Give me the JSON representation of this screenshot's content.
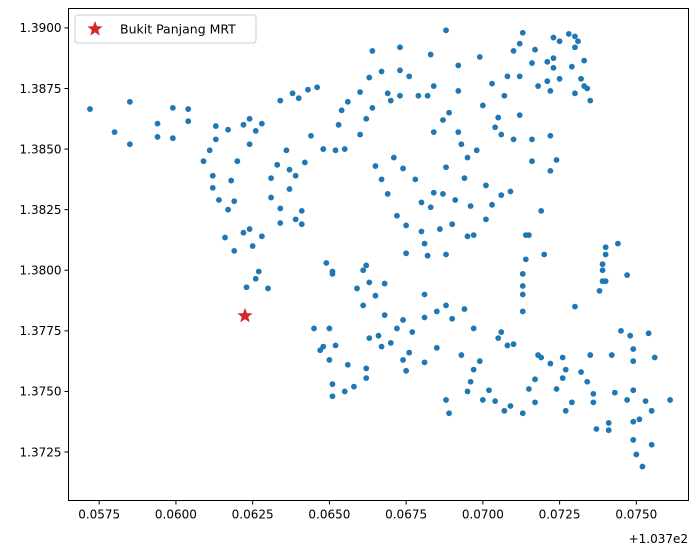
{
  "chart_data": {
    "type": "scatter",
    "title": "",
    "xlabel": "",
    "ylabel": "",
    "xlim": [
      0.0565,
      0.0767
    ],
    "ylim": [
      1.3705,
      1.3908
    ],
    "x_offset_label": "+1.037e2",
    "xticks": [
      0.0575,
      0.06,
      0.0625,
      0.065,
      0.0675,
      0.07,
      0.0725,
      0.075
    ],
    "xtick_labels": [
      "0.0575",
      "0.0600",
      "0.0625",
      "0.0650",
      "0.0675",
      "0.0700",
      "0.0725",
      "0.0750"
    ],
    "yticks": [
      1.3725,
      1.375,
      1.3775,
      1.38,
      1.3825,
      1.385,
      1.3875,
      1.39
    ],
    "ytick_labels": [
      "1.3725",
      "1.3750",
      "1.3775",
      "1.3800",
      "1.3825",
      "1.3850",
      "1.3875",
      "1.3900"
    ],
    "grid": false,
    "legend_position": "top-left",
    "legend": [
      {
        "name": "Bukit Panjang MRT",
        "marker": "star",
        "color": "#d62728"
      }
    ],
    "colors": {
      "points": "#1f77b4",
      "station": "#d62728"
    },
    "station": {
      "name": "Bukit Panjang MRT",
      "x": 0.06225,
      "y": 1.37812
    },
    "points": [
      [
        0.0572,
        1.38665
      ],
      [
        0.058,
        1.3857
      ],
      [
        0.0585,
        1.38695
      ],
      [
        0.0585,
        1.3852
      ],
      [
        0.0594,
        1.38605
      ],
      [
        0.0594,
        1.3855
      ],
      [
        0.0599,
        1.3867
      ],
      [
        0.0599,
        1.38545
      ],
      [
        0.0604,
        1.38665
      ],
      [
        0.0604,
        1.38615
      ],
      [
        0.0609,
        1.3845
      ],
      [
        0.0611,
        1.38495
      ],
      [
        0.0612,
        1.3839
      ],
      [
        0.0612,
        1.3834
      ],
      [
        0.0613,
        1.3854
      ],
      [
        0.0613,
        1.38595
      ],
      [
        0.0614,
        1.3829
      ],
      [
        0.0616,
        1.38135
      ],
      [
        0.0617,
        1.3825
      ],
      [
        0.0617,
        1.3858
      ],
      [
        0.0618,
        1.3837
      ],
      [
        0.0619,
        1.3808
      ],
      [
        0.0619,
        1.38285
      ],
      [
        0.062,
        1.3845
      ],
      [
        0.0622,
        1.38155
      ],
      [
        0.0622,
        1.386
      ],
      [
        0.0623,
        1.3793
      ],
      [
        0.0624,
        1.38625
      ],
      [
        0.0624,
        1.3817
      ],
      [
        0.0624,
        1.3852
      ],
      [
        0.0625,
        1.381
      ],
      [
        0.0626,
        1.38575
      ],
      [
        0.0626,
        1.37965
      ],
      [
        0.0627,
        1.37995
      ],
      [
        0.0628,
        1.3814
      ],
      [
        0.0628,
        1.38605
      ],
      [
        0.063,
        1.37925
      ],
      [
        0.0631,
        1.3838
      ],
      [
        0.0631,
        1.383
      ],
      [
        0.0633,
        1.38435
      ],
      [
        0.0634,
        1.38255
      ],
      [
        0.0634,
        1.38195
      ],
      [
        0.0634,
        1.387
      ],
      [
        0.0636,
        1.38495
      ],
      [
        0.0637,
        1.38415
      ],
      [
        0.0637,
        1.38335
      ],
      [
        0.0638,
        1.3873
      ],
      [
        0.0639,
        1.3839
      ],
      [
        0.0639,
        1.3821
      ],
      [
        0.064,
        1.3871
      ],
      [
        0.0641,
        1.38245
      ],
      [
        0.0641,
        1.3819
      ],
      [
        0.0642,
        1.38445
      ],
      [
        0.0643,
        1.38745
      ],
      [
        0.0644,
        1.38555
      ],
      [
        0.0646,
        1.38755
      ],
      [
        0.0648,
        1.385
      ],
      [
        0.0645,
        1.3776
      ],
      [
        0.0647,
        1.3767
      ],
      [
        0.0648,
        1.37685
      ],
      [
        0.0649,
        1.3803
      ],
      [
        0.065,
        1.3776
      ],
      [
        0.065,
        1.3763
      ],
      [
        0.0651,
        1.37995
      ],
      [
        0.0651,
        1.3753
      ],
      [
        0.0651,
        1.3748
      ],
      [
        0.0651,
        1.37985
      ],
      [
        0.0652,
        1.3769
      ],
      [
        0.0652,
        1.38495
      ],
      [
        0.0653,
        1.386
      ],
      [
        0.0654,
        1.3866
      ],
      [
        0.0655,
        1.375
      ],
      [
        0.0655,
        1.385
      ],
      [
        0.0656,
        1.38695
      ],
      [
        0.0656,
        1.3761
      ],
      [
        0.0658,
        1.3752
      ],
      [
        0.0659,
        1.37925
      ],
      [
        0.066,
        1.3856
      ],
      [
        0.066,
        1.38735
      ],
      [
        0.0661,
        1.37855
      ],
      [
        0.0661,
        1.38
      ],
      [
        0.0662,
        1.3802
      ],
      [
        0.0662,
        1.38625
      ],
      [
        0.0662,
        1.37555
      ],
      [
        0.0662,
        1.37595
      ],
      [
        0.0663,
        1.3772
      ],
      [
        0.0663,
        1.3795
      ],
      [
        0.0663,
        1.38795
      ],
      [
        0.0664,
        1.38905
      ],
      [
        0.0664,
        1.3867
      ],
      [
        0.0665,
        1.3843
      ],
      [
        0.0665,
        1.37895
      ],
      [
        0.0666,
        1.3773
      ],
      [
        0.0667,
        1.38375
      ],
      [
        0.0667,
        1.3882
      ],
      [
        0.0667,
        1.37685
      ],
      [
        0.0668,
        1.37815
      ],
      [
        0.0668,
        1.37945
      ],
      [
        0.0669,
        1.38315
      ],
      [
        0.0669,
        1.3873
      ],
      [
        0.067,
        1.387
      ],
      [
        0.067,
        1.377
      ],
      [
        0.0671,
        1.38465
      ],
      [
        0.0672,
        1.38225
      ],
      [
        0.0672,
        1.3776
      ],
      [
        0.0673,
        1.3892
      ],
      [
        0.0673,
        1.38825
      ],
      [
        0.0673,
        1.3872
      ],
      [
        0.0674,
        1.3842
      ],
      [
        0.0674,
        1.3763
      ],
      [
        0.0674,
        1.37795
      ],
      [
        0.0675,
        1.38185
      ],
      [
        0.0675,
        1.3807
      ],
      [
        0.0675,
        1.37585
      ],
      [
        0.0676,
        1.3766
      ],
      [
        0.0676,
        1.388
      ],
      [
        0.0677,
        1.37745
      ],
      [
        0.0678,
        1.38375
      ],
      [
        0.0679,
        1.3872
      ],
      [
        0.068,
        1.3828
      ],
      [
        0.068,
        1.3816
      ],
      [
        0.0681,
        1.3811
      ],
      [
        0.0681,
        1.379
      ],
      [
        0.0681,
        1.3762
      ],
      [
        0.0681,
        1.37805
      ],
      [
        0.0682,
        1.3806
      ],
      [
        0.0682,
        1.3872
      ],
      [
        0.0683,
        1.3826
      ],
      [
        0.0683,
        1.3889
      ],
      [
        0.0684,
        1.3832
      ],
      [
        0.0684,
        1.3876
      ],
      [
        0.0684,
        1.3857
      ],
      [
        0.0685,
        1.3768
      ],
      [
        0.0685,
        1.3783
      ],
      [
        0.0686,
        1.3817
      ],
      [
        0.0687,
        1.3862
      ],
      [
        0.0687,
        1.38315
      ],
      [
        0.0688,
        1.38065
      ],
      [
        0.0688,
        1.38425
      ],
      [
        0.0688,
        1.37855
      ],
      [
        0.0688,
        1.37465
      ],
      [
        0.0688,
        1.3899
      ],
      [
        0.0689,
        1.3741
      ],
      [
        0.0689,
        1.3865
      ],
      [
        0.069,
        1.3819
      ],
      [
        0.069,
        1.378
      ],
      [
        0.0691,
        1.3829
      ],
      [
        0.0692,
        1.38845
      ],
      [
        0.0692,
        1.3874
      ],
      [
        0.0692,
        1.3857
      ],
      [
        0.0693,
        1.3852
      ],
      [
        0.0693,
        1.3765
      ],
      [
        0.0694,
        1.3838
      ],
      [
        0.0694,
        1.3784
      ],
      [
        0.0695,
        1.38465
      ],
      [
        0.0695,
        1.3814
      ],
      [
        0.0695,
        1.375
      ],
      [
        0.0696,
        1.3754
      ],
      [
        0.0696,
        1.38265
      ],
      [
        0.0697,
        1.38145
      ],
      [
        0.0697,
        1.3759
      ],
      [
        0.0697,
        1.3776
      ],
      [
        0.0698,
        1.38495
      ],
      [
        0.0699,
        1.3888
      ],
      [
        0.0699,
        1.37625
      ],
      [
        0.07,
        1.3868
      ],
      [
        0.07,
        1.37465
      ],
      [
        0.0701,
        1.3835
      ],
      [
        0.0701,
        1.3821
      ],
      [
        0.0702,
        1.37505
      ],
      [
        0.0703,
        1.3827
      ],
      [
        0.0703,
        1.3877
      ],
      [
        0.0704,
        1.3859
      ],
      [
        0.0704,
        1.3746
      ],
      [
        0.0705,
        1.3772
      ],
      [
        0.0705,
        1.3863
      ],
      [
        0.0706,
        1.3856
      ],
      [
        0.0706,
        1.3831
      ],
      [
        0.0706,
        1.37745
      ],
      [
        0.0707,
        1.3742
      ],
      [
        0.0707,
        1.3872
      ],
      [
        0.0708,
        1.3769
      ],
      [
        0.0708,
        1.388
      ],
      [
        0.0709,
        1.38325
      ],
      [
        0.0709,
        1.3744
      ],
      [
        0.071,
        1.38905
      ],
      [
        0.071,
        1.3854
      ],
      [
        0.071,
        1.37695
      ],
      [
        0.0712,
        1.38935
      ],
      [
        0.0712,
        1.388
      ],
      [
        0.0712,
        1.3864
      ],
      [
        0.0713,
        1.3741
      ],
      [
        0.0713,
        1.37935
      ],
      [
        0.0713,
        1.379
      ],
      [
        0.0713,
        1.3783
      ],
      [
        0.0713,
        1.37985
      ],
      [
        0.0713,
        1.3898
      ],
      [
        0.0714,
        1.38045
      ],
      [
        0.0714,
        1.38145
      ],
      [
        0.0715,
        1.38145
      ],
      [
        0.0715,
        1.3751
      ],
      [
        0.0716,
        1.38855
      ],
      [
        0.0716,
        1.3845
      ],
      [
        0.0716,
        1.3854
      ],
      [
        0.0717,
        1.3891
      ],
      [
        0.0717,
        1.3755
      ],
      [
        0.0717,
        1.37455
      ],
      [
        0.0718,
        1.3876
      ],
      [
        0.0718,
        1.3765
      ],
      [
        0.0719,
        1.3764
      ],
      [
        0.0719,
        1.38245
      ],
      [
        0.072,
        1.38065
      ],
      [
        0.0721,
        1.3878
      ],
      [
        0.0721,
        1.3886
      ],
      [
        0.0722,
        1.37615
      ],
      [
        0.0722,
        1.38555
      ],
      [
        0.0722,
        1.3841
      ],
      [
        0.0722,
        1.3874
      ],
      [
        0.0723,
        1.3896
      ],
      [
        0.0723,
        1.38875
      ],
      [
        0.0723,
        1.38835
      ],
      [
        0.0724,
        1.3751
      ],
      [
        0.0724,
        1.38455
      ],
      [
        0.0725,
        1.38945
      ],
      [
        0.0725,
        1.3879
      ],
      [
        0.0726,
        1.37555
      ],
      [
        0.0726,
        1.3764
      ],
      [
        0.0727,
        1.3759
      ],
      [
        0.0727,
        1.3742
      ],
      [
        0.0728,
        1.38975
      ],
      [
        0.0729,
        1.3884
      ],
      [
        0.0729,
        1.37455
      ],
      [
        0.073,
        1.3892
      ],
      [
        0.073,
        1.38965
      ],
      [
        0.073,
        1.3785
      ],
      [
        0.073,
        1.3873
      ],
      [
        0.0731,
        1.38945
      ],
      [
        0.0732,
        1.3879
      ],
      [
        0.0732,
        1.3758
      ],
      [
        0.0733,
        1.38865
      ],
      [
        0.0733,
        1.3876
      ],
      [
        0.0734,
        1.3754
      ],
      [
        0.0734,
        1.3875
      ],
      [
        0.0735,
        1.387
      ],
      [
        0.0735,
        1.3765
      ],
      [
        0.0736,
        1.37455
      ],
      [
        0.0736,
        1.3749
      ],
      [
        0.0737,
        1.37345
      ],
      [
        0.0738,
        1.37915
      ],
      [
        0.0739,
        1.37955
      ],
      [
        0.0739,
        1.38
      ],
      [
        0.0739,
        1.38025
      ],
      [
        0.074,
        1.38065
      ],
      [
        0.074,
        1.38095
      ],
      [
        0.074,
        1.37955
      ],
      [
        0.0741,
        1.3734
      ],
      [
        0.0741,
        1.3737
      ],
      [
        0.0742,
        1.3765
      ],
      [
        0.0743,
        1.37495
      ],
      [
        0.0744,
        1.3811
      ],
      [
        0.0745,
        1.3775
      ],
      [
        0.0747,
        1.37465
      ],
      [
        0.0747,
        1.3798
      ],
      [
        0.0748,
        1.3773
      ],
      [
        0.0749,
        1.37675
      ],
      [
        0.0749,
        1.37625
      ],
      [
        0.0749,
        1.37505
      ],
      [
        0.0749,
        1.37375
      ],
      [
        0.0749,
        1.373
      ],
      [
        0.075,
        1.3724
      ],
      [
        0.0751,
        1.37385
      ],
      [
        0.0752,
        1.3719
      ],
      [
        0.0753,
        1.3746
      ],
      [
        0.0754,
        1.3774
      ],
      [
        0.0755,
        1.3742
      ],
      [
        0.0755,
        1.3728
      ],
      [
        0.0756,
        1.3764
      ],
      [
        0.0761,
        1.37465
      ]
    ]
  }
}
